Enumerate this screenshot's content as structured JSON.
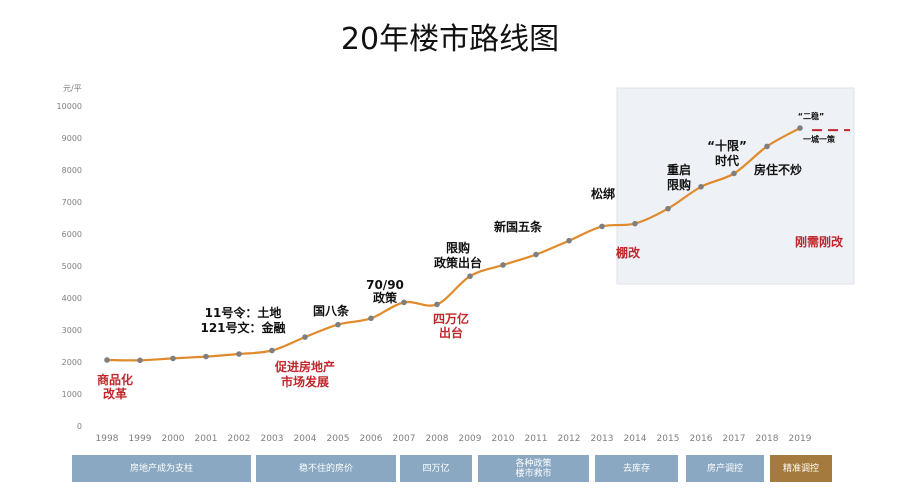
{
  "title": "20年楼市路线图",
  "chart_data": {
    "type": "line",
    "ylabel": "元/平",
    "ylim": [
      0,
      10000
    ],
    "yticks": [
      0,
      1000,
      2000,
      3000,
      4000,
      5000,
      6000,
      7000,
      8000,
      9000,
      10000
    ],
    "x": [
      "1998",
      "1999",
      "2000",
      "2001",
      "2002",
      "2003",
      "2004",
      "2005",
      "2006",
      "2007",
      "2008",
      "2009",
      "2010",
      "2011",
      "2012",
      "2013",
      "2014",
      "2015",
      "2016",
      "2017",
      "2018",
      "2019"
    ],
    "values": [
      2063,
      2053,
      2112,
      2170,
      2250,
      2359,
      2778,
      3168,
      3367,
      3864,
      3800,
      4681,
      5032,
      5357,
      5791,
      6237,
      6324,
      6793,
      7476,
      7892,
      8737,
      9310
    ],
    "line_color": "#e08a2c",
    "marker_color": "#7f7f7f",
    "shaded_region": {
      "from": "2013",
      "to": "2019"
    },
    "annotations": [
      {
        "text": "商品化",
        "x": "1998",
        "color": "#c0282d"
      },
      {
        "text": "改革",
        "x": "1998",
        "color": "#c0282d"
      },
      {
        "text": "11号令：土地",
        "x": "2003",
        "color": "#111111"
      },
      {
        "text": "121号文：金融",
        "x": "2003",
        "color": "#111111"
      },
      {
        "text": "促进房地产",
        "x": "2003",
        "color": "#c0282d"
      },
      {
        "text": "市场发展",
        "x": "2003",
        "color": "#c0282d"
      },
      {
        "text": "国八条",
        "x": "2005",
        "color": "#111111"
      },
      {
        "text": "70/90",
        "x": "2006",
        "color": "#111111"
      },
      {
        "text": "政策",
        "x": "2006",
        "color": "#111111"
      },
      {
        "text": "四万亿",
        "x": "2008",
        "color": "#c0282d"
      },
      {
        "text": "出台",
        "x": "2008",
        "color": "#c0282d"
      },
      {
        "text": "限购",
        "x": "2009",
        "color": "#111111"
      },
      {
        "text": "政策出台",
        "x": "2009",
        "color": "#111111"
      },
      {
        "text": "新国五条",
        "x": "2011",
        "color": "#111111"
      },
      {
        "text": "松绑",
        "x": "2013",
        "color": "#111111"
      },
      {
        "text": "棚改",
        "x": "2014",
        "color": "#c0282d"
      },
      {
        "text": "重启",
        "x": "2015",
        "color": "#111111"
      },
      {
        "text": "限购",
        "x": "2015",
        "color": "#111111"
      },
      {
        "text": "“十限”",
        "x": "2016",
        "color": "#111111"
      },
      {
        "text": "时代",
        "x": "2016",
        "color": "#111111"
      },
      {
        "text": "房住不炒",
        "x": "2017",
        "color": "#111111"
      },
      {
        "text": "刚需刚改",
        "x": "2019",
        "color": "#c0282d"
      },
      {
        "text": "“二稳”",
        "x": "2019",
        "color": "#111111"
      },
      {
        "text": "一城一策",
        "x": "2019",
        "color": "#111111"
      }
    ]
  },
  "phases": [
    {
      "label": "房地产成为支柱",
      "color": "#8aa8c2"
    },
    {
      "label": "稳不住的房价",
      "color": "#8aa8c2"
    },
    {
      "label": "四万亿",
      "color": "#8aa8c2"
    },
    {
      "label": "各种政策\n楼市救市",
      "color": "#8aa8c2"
    },
    {
      "label": "去库存",
      "color": "#8aa8c2"
    },
    {
      "label": "房产调控",
      "color": "#8aa8c2"
    },
    {
      "label": "精准调控",
      "color": "#a57a3e"
    }
  ]
}
